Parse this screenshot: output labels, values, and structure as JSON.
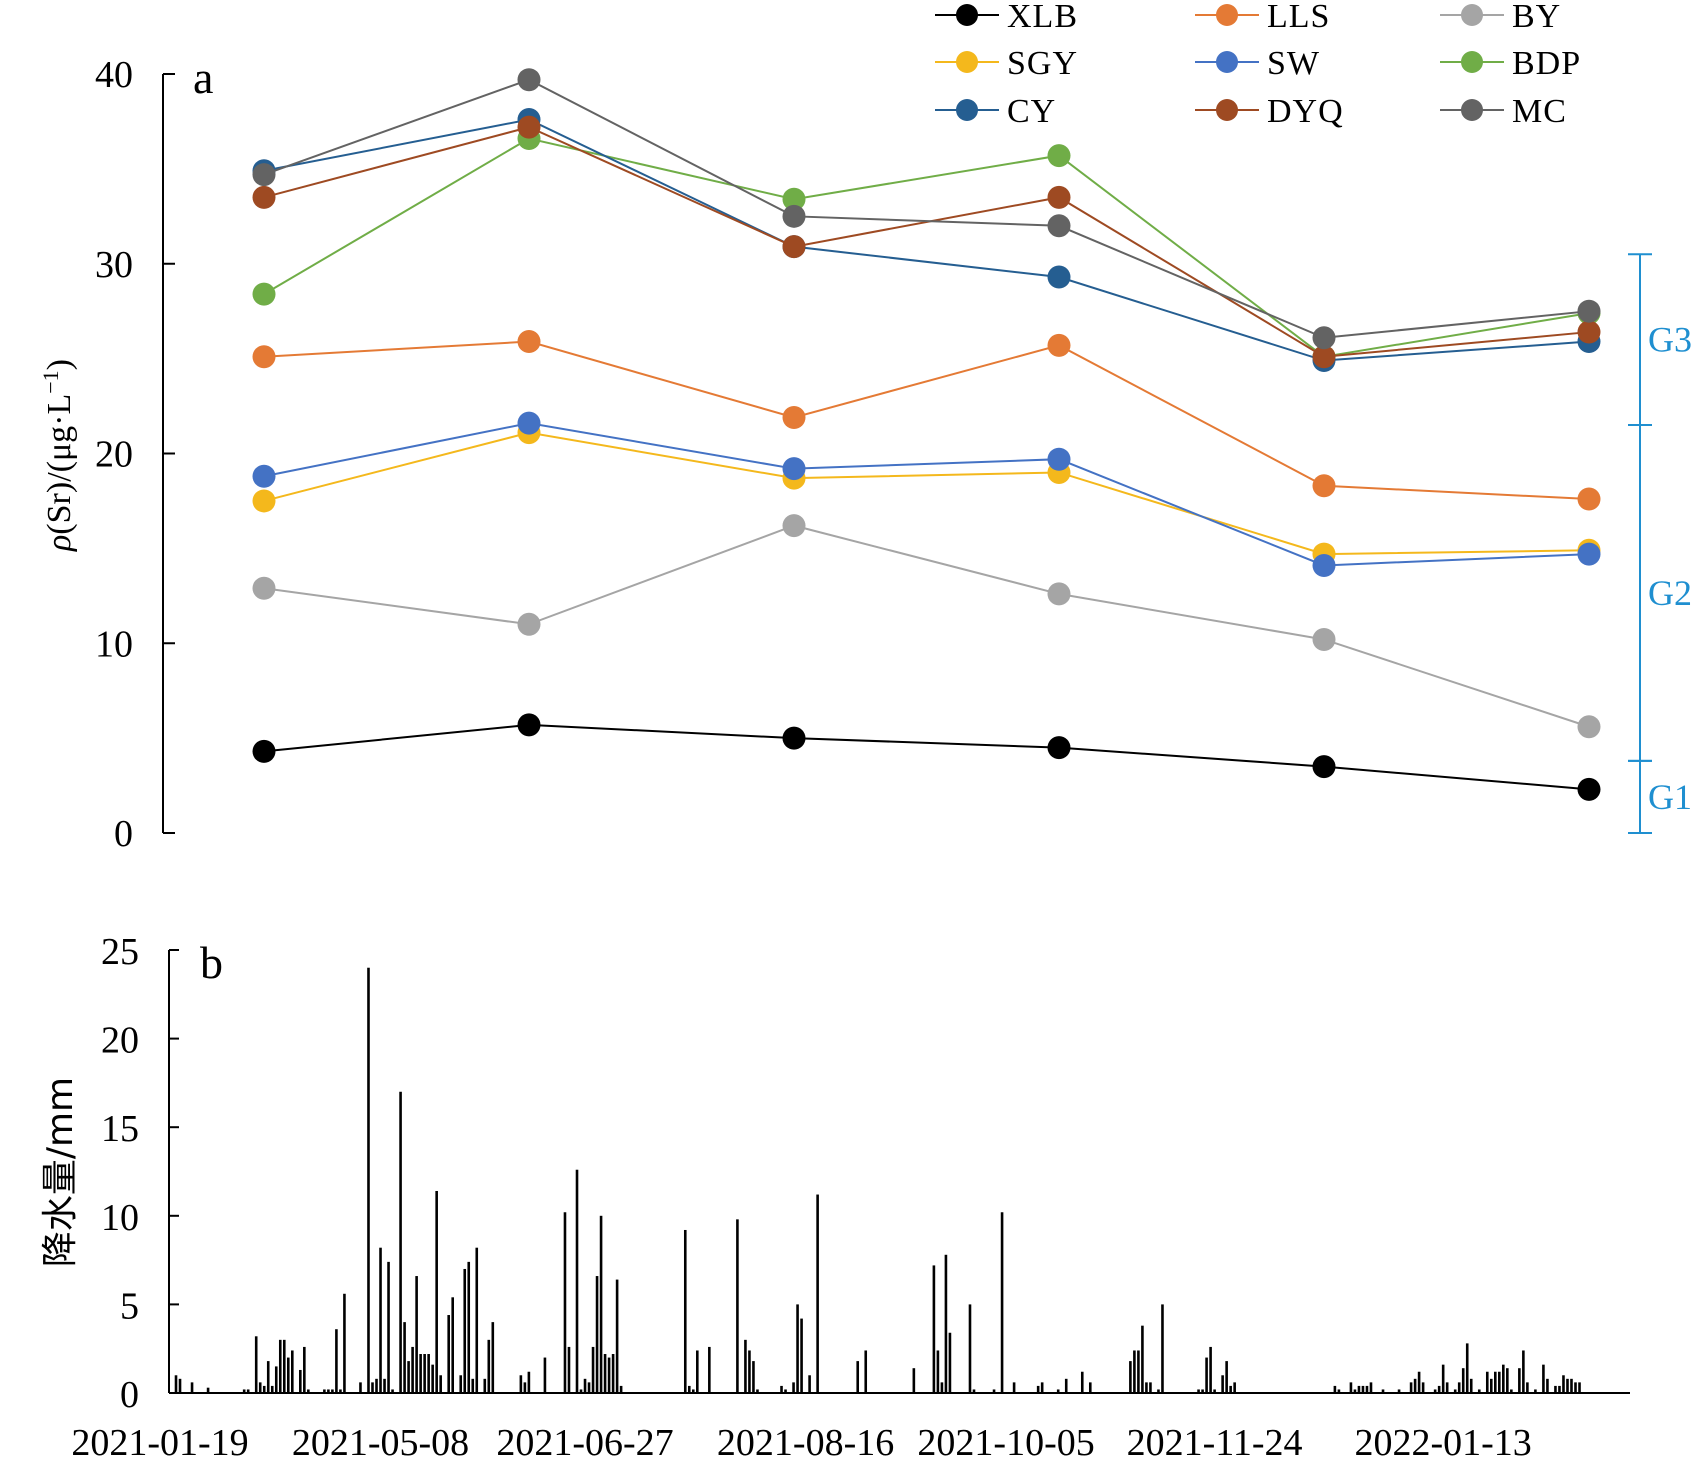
{
  "chart_data": [
    {
      "type": "line",
      "panel_label": "a",
      "ylabel": "ρ(Sr)/(μg·L⁻¹)",
      "ylabel_parts": {
        "rho": "ρ",
        "main": "(Sr)/(μg·L",
        "sup": "−1",
        "close": ")"
      },
      "ylim": [
        0,
        40
      ],
      "yticks": [
        0,
        10,
        20,
        30,
        40
      ],
      "grid": false,
      "x_sample_positions": [
        1,
        2,
        3,
        4,
        5,
        6
      ],
      "legend_position": "top-right",
      "series": [
        {
          "name": "XLB",
          "color": "#000000",
          "values": [
            4.3,
            5.7,
            5.0,
            4.5,
            3.5,
            2.3
          ]
        },
        {
          "name": "LLS",
          "color": "#e47a35",
          "values": [
            25.1,
            25.9,
            21.9,
            25.7,
            18.3,
            17.6
          ]
        },
        {
          "name": "BY",
          "color": "#a5a5a5",
          "values": [
            12.9,
            11.0,
            16.2,
            12.6,
            10.2,
            5.6
          ]
        },
        {
          "name": "SGY",
          "color": "#f4b81c",
          "values": [
            17.5,
            21.1,
            18.7,
            19.0,
            14.7,
            14.9
          ]
        },
        {
          "name": "SW",
          "color": "#4472c4",
          "values": [
            18.8,
            21.6,
            19.2,
            19.7,
            14.1,
            14.7
          ]
        },
        {
          "name": "BDP",
          "color": "#70ad47",
          "values": [
            28.4,
            36.6,
            33.4,
            35.7,
            25.1,
            27.4
          ]
        },
        {
          "name": "CY",
          "color": "#255e91",
          "values": [
            34.9,
            37.6,
            30.9,
            29.3,
            24.9,
            25.9
          ]
        },
        {
          "name": "DYQ",
          "color": "#9e4a22",
          "values": [
            33.5,
            37.2,
            30.9,
            33.5,
            25.1,
            26.4
          ]
        },
        {
          "name": "MC",
          "color": "#636363",
          "values": [
            34.7,
            39.7,
            32.5,
            32.0,
            26.1,
            27.5
          ]
        }
      ],
      "groups": [
        {
          "label": "G1",
          "range": [
            0,
            3.8
          ]
        },
        {
          "label": "G2",
          "range": [
            3.8,
            21.5
          ]
        },
        {
          "label": "G3",
          "range": [
            21.5,
            30.5
          ]
        }
      ],
      "group_color": "#1f8fd0"
    },
    {
      "type": "bar",
      "panel_label": "b",
      "ylabel": "降水量/mm",
      "ylim": [
        0,
        25
      ],
      "yticks": [
        0,
        5,
        10,
        15,
        20,
        25
      ],
      "grid": false,
      "x_range": [
        0,
        365
      ],
      "xticks": [
        {
          "label": "2021-01-19",
          "pos": -3
        },
        {
          "label": "2021-05-08",
          "pos": 52
        },
        {
          "label": "2021-06-27",
          "pos": 103
        },
        {
          "label": "2021-08-16",
          "pos": 158
        },
        {
          "label": "2021-10-05",
          "pos": 208
        },
        {
          "label": "2021-11-24",
          "pos": 260
        },
        {
          "label": "2022-01-13",
          "pos": 317
        }
      ],
      "bars": [
        [
          1,
          1.0
        ],
        [
          2,
          0.8
        ],
        [
          5,
          0.6
        ],
        [
          9,
          0.3
        ],
        [
          18,
          0.2
        ],
        [
          19,
          0.2
        ],
        [
          21,
          3.2
        ],
        [
          22,
          0.6
        ],
        [
          23,
          0.4
        ],
        [
          24,
          1.8
        ],
        [
          25,
          0.4
        ],
        [
          26,
          1.5
        ],
        [
          27,
          3.0
        ],
        [
          28,
          3.0
        ],
        [
          29,
          2.0
        ],
        [
          30,
          2.4
        ],
        [
          32,
          1.3
        ],
        [
          33,
          2.6
        ],
        [
          34,
          0.2
        ],
        [
          38,
          0.2
        ],
        [
          39,
          0.2
        ],
        [
          40,
          0.2
        ],
        [
          41,
          3.6
        ],
        [
          42,
          0.2
        ],
        [
          43,
          5.6
        ],
        [
          47,
          0.6
        ],
        [
          49,
          24.0
        ],
        [
          50,
          0.6
        ],
        [
          51,
          0.8
        ],
        [
          52,
          8.2
        ],
        [
          53,
          0.8
        ],
        [
          54,
          7.4
        ],
        [
          55,
          0.2
        ],
        [
          57,
          17.0
        ],
        [
          58,
          4.0
        ],
        [
          59,
          1.8
        ],
        [
          60,
          2.6
        ],
        [
          61,
          6.6
        ],
        [
          62,
          2.2
        ],
        [
          63,
          2.2
        ],
        [
          64,
          2.2
        ],
        [
          65,
          1.6
        ],
        [
          66,
          11.4
        ],
        [
          67,
          1.0
        ],
        [
          69,
          4.4
        ],
        [
          70,
          5.4
        ],
        [
          72,
          1.0
        ],
        [
          73,
          7.0
        ],
        [
          74,
          7.4
        ],
        [
          75,
          0.8
        ],
        [
          76,
          8.2
        ],
        [
          78,
          0.8
        ],
        [
          79,
          3.0
        ],
        [
          80,
          4.0
        ],
        [
          87,
          1.0
        ],
        [
          88,
          0.6
        ],
        [
          89,
          1.2
        ],
        [
          93,
          2.0
        ],
        [
          98,
          10.2
        ],
        [
          99,
          2.6
        ],
        [
          101,
          12.6
        ],
        [
          102,
          0.2
        ],
        [
          103,
          0.8
        ],
        [
          104,
          0.6
        ],
        [
          105,
          2.6
        ],
        [
          106,
          6.6
        ],
        [
          107,
          10.0
        ],
        [
          108,
          2.2
        ],
        [
          109,
          2.0
        ],
        [
          110,
          2.2
        ],
        [
          111,
          6.4
        ],
        [
          112,
          0.4
        ],
        [
          128,
          9.2
        ],
        [
          129,
          0.4
        ],
        [
          130,
          0.2
        ],
        [
          131,
          2.4
        ],
        [
          134,
          2.6
        ],
        [
          141,
          9.8
        ],
        [
          143,
          3.0
        ],
        [
          144,
          2.4
        ],
        [
          145,
          1.8
        ],
        [
          146,
          0.2
        ],
        [
          152,
          0.4
        ],
        [
          153,
          0.2
        ],
        [
          155,
          0.6
        ],
        [
          156,
          5.0
        ],
        [
          157,
          4.2
        ],
        [
          159,
          1.0
        ],
        [
          161,
          11.2
        ],
        [
          171,
          1.8
        ],
        [
          173,
          2.4
        ],
        [
          185,
          1.4
        ],
        [
          190,
          7.2
        ],
        [
          191,
          2.4
        ],
        [
          192,
          0.6
        ],
        [
          193,
          7.8
        ],
        [
          194,
          3.4
        ],
        [
          199,
          5.0
        ],
        [
          200,
          0.2
        ],
        [
          205,
          0.2
        ],
        [
          207,
          10.2
        ],
        [
          210,
          0.6
        ],
        [
          216,
          0.4
        ],
        [
          217,
          0.6
        ],
        [
          221,
          0.2
        ],
        [
          223,
          0.8
        ],
        [
          227,
          1.2
        ],
        [
          229,
          0.6
        ],
        [
          239,
          1.8
        ],
        [
          240,
          2.4
        ],
        [
          241,
          2.4
        ],
        [
          242,
          3.8
        ],
        [
          243,
          0.6
        ],
        [
          244,
          0.6
        ],
        [
          246,
          0.2
        ],
        [
          247,
          5.0
        ],
        [
          256,
          0.2
        ],
        [
          257,
          0.2
        ],
        [
          258,
          2.0
        ],
        [
          259,
          2.6
        ],
        [
          260,
          0.2
        ],
        [
          262,
          1.0
        ],
        [
          263,
          1.8
        ],
        [
          264,
          0.4
        ],
        [
          265,
          0.6
        ],
        [
          290,
          0.4
        ],
        [
          291,
          0.2
        ],
        [
          294,
          0.6
        ],
        [
          295,
          0.2
        ],
        [
          296,
          0.4
        ],
        [
          297,
          0.4
        ],
        [
          298,
          0.4
        ],
        [
          299,
          0.6
        ],
        [
          302,
          0.2
        ],
        [
          306,
          0.2
        ],
        [
          309,
          0.6
        ],
        [
          310,
          0.8
        ],
        [
          311,
          1.2
        ],
        [
          312,
          0.6
        ],
        [
          315,
          0.2
        ],
        [
          316,
          0.4
        ],
        [
          317,
          1.6
        ],
        [
          318,
          0.6
        ],
        [
          320,
          0.2
        ],
        [
          321,
          0.6
        ],
        [
          322,
          1.4
        ],
        [
          323,
          2.8
        ],
        [
          324,
          0.8
        ],
        [
          326,
          0.2
        ],
        [
          328,
          1.2
        ],
        [
          329,
          0.8
        ],
        [
          330,
          1.2
        ],
        [
          331,
          1.2
        ],
        [
          332,
          1.6
        ],
        [
          333,
          1.4
        ],
        [
          334,
          0.2
        ],
        [
          336,
          1.4
        ],
        [
          337,
          2.4
        ],
        [
          338,
          0.6
        ],
        [
          340,
          0.2
        ],
        [
          342,
          1.6
        ],
        [
          343,
          0.8
        ],
        [
          345,
          0.4
        ],
        [
          346,
          0.4
        ],
        [
          347,
          1.0
        ],
        [
          348,
          0.8
        ],
        [
          349,
          0.8
        ],
        [
          350,
          0.6
        ],
        [
          351,
          0.6
        ]
      ]
    }
  ]
}
